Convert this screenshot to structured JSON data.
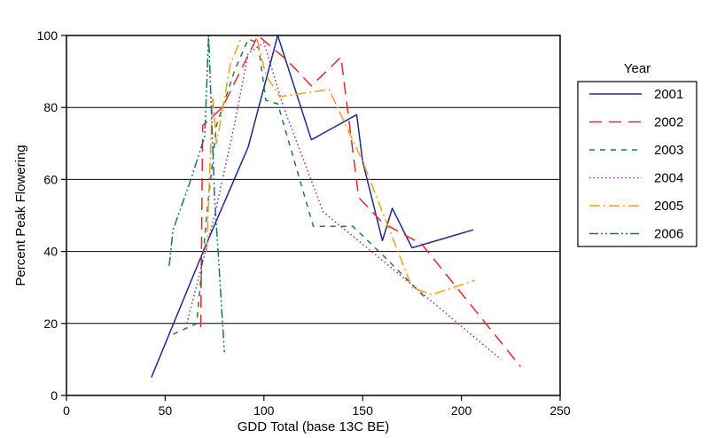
{
  "chart_data": {
    "type": "line",
    "xlabel": "GDD Total (base 13C BE)",
    "ylabel": "Percent Peak Flowering",
    "xlim": [
      0,
      250
    ],
    "ylim": [
      0,
      100
    ],
    "xticks": [
      0,
      50,
      100,
      150,
      200,
      250
    ],
    "yticks": [
      0,
      20,
      40,
      60,
      80,
      100
    ],
    "grid": "horizontal",
    "legend": {
      "title": "Year",
      "placement": "right"
    },
    "series": [
      {
        "name": "2001",
        "color": "#1f2a8c",
        "dash": "solid",
        "points": [
          [
            43,
            5
          ],
          [
            70,
            41
          ],
          [
            92,
            69
          ],
          [
            107,
            100
          ],
          [
            124,
            71
          ],
          [
            147,
            78
          ],
          [
            150,
            65
          ],
          [
            160,
            43
          ],
          [
            165,
            52
          ],
          [
            175,
            41
          ],
          [
            206,
            46
          ]
        ]
      },
      {
        "name": "2002",
        "color": "#e8262a",
        "dash": "long",
        "points": [
          [
            68,
            19
          ],
          [
            69,
            75
          ],
          [
            79,
            80
          ],
          [
            97,
            100
          ],
          [
            112,
            93
          ],
          [
            124,
            86
          ],
          [
            139,
            94
          ],
          [
            148,
            55
          ],
          [
            160,
            48
          ],
          [
            180,
            42
          ],
          [
            230,
            8
          ]
        ]
      },
      {
        "name": "2003",
        "color": "#1f7a48",
        "dash": "short",
        "points": [
          [
            54,
            17
          ],
          [
            66,
            20
          ],
          [
            71,
            50
          ],
          [
            76,
            75
          ],
          [
            85,
            90
          ],
          [
            92,
            99
          ],
          [
            97,
            98
          ],
          [
            101,
            82
          ],
          [
            107,
            81
          ],
          [
            125,
            47
          ],
          [
            145,
            47
          ],
          [
            162,
            38
          ],
          [
            182,
            27
          ]
        ]
      },
      {
        "name": "2004",
        "color": "#9b1fa8",
        "dash": "dotted",
        "points": [
          [
            61,
            20
          ],
          [
            75,
            50
          ],
          [
            85,
            75
          ],
          [
            92,
            95
          ],
          [
            100,
            98
          ],
          [
            110,
            80
          ],
          [
            130,
            51
          ],
          [
            170,
            33
          ],
          [
            220,
            10
          ]
        ]
      },
      {
        "name": "2005",
        "color": "#f39c1e",
        "dash": "dashdot",
        "points": [
          [
            71,
            40
          ],
          [
            74,
            83
          ],
          [
            76,
            70
          ],
          [
            83,
            92
          ],
          [
            89,
            100
          ],
          [
            96,
            100
          ],
          [
            101,
            89
          ],
          [
            108,
            83
          ],
          [
            133,
            85
          ],
          [
            150,
            65
          ],
          [
            175,
            30
          ],
          [
            185,
            28
          ],
          [
            207,
            32
          ]
        ]
      },
      {
        "name": "2006",
        "color": "#17707a",
        "dash": "dashdotdot",
        "points": [
          [
            52,
            36
          ],
          [
            54,
            46
          ],
          [
            63,
            60
          ],
          [
            70,
            72
          ],
          [
            72,
            100
          ],
          [
            75,
            55
          ],
          [
            77,
            38
          ],
          [
            80,
            12
          ]
        ]
      }
    ]
  }
}
